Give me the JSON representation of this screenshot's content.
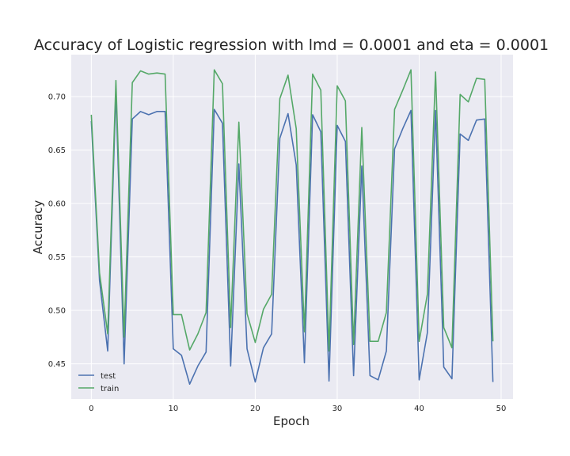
{
  "chart_data": {
    "type": "line",
    "title": "Accuracy of Logistic regression with lmd = 0.0001 and eta = 0.0001",
    "xlabel": "Epoch",
    "ylabel": "Accuracy",
    "xlim": [
      -2.45,
      51.45
    ],
    "ylim": [
      0.4171,
      0.7392
    ],
    "xticks": [
      0,
      10,
      20,
      30,
      40,
      50
    ],
    "yticks": [
      0.45,
      0.5,
      0.55,
      0.6,
      0.65,
      0.7
    ],
    "xtick_labels": [
      "0",
      "10",
      "20",
      "30",
      "40",
      "50"
    ],
    "ytick_labels": [
      "0.45",
      "0.50",
      "0.55",
      "0.60",
      "0.65",
      "0.70"
    ],
    "grid": true,
    "legend_position": "lower-left",
    "series": [
      {
        "name": "test",
        "color": "#4c72b0",
        "x": [
          0,
          1,
          2,
          3,
          4,
          5,
          6,
          7,
          8,
          9,
          10,
          11,
          12,
          13,
          14,
          15,
          16,
          17,
          18,
          19,
          20,
          21,
          22,
          23,
          24,
          25,
          26,
          27,
          28,
          29,
          30,
          31,
          32,
          33,
          34,
          35,
          36,
          37,
          38,
          39,
          40,
          41,
          42,
          43,
          44,
          45,
          46,
          47,
          48,
          49
        ],
        "values": [
          0.677,
          0.528,
          0.462,
          0.705,
          0.45,
          0.679,
          0.686,
          0.683,
          0.686,
          0.686,
          0.464,
          0.458,
          0.431,
          0.448,
          0.461,
          0.688,
          0.675,
          0.448,
          0.637,
          0.464,
          0.433,
          0.465,
          0.478,
          0.661,
          0.684,
          0.636,
          0.451,
          0.683,
          0.667,
          0.434,
          0.673,
          0.658,
          0.439,
          0.635,
          0.439,
          0.435,
          0.462,
          0.651,
          0.67,
          0.687,
          0.435,
          0.479,
          0.687,
          0.447,
          0.436,
          0.665,
          0.659,
          0.678,
          0.679,
          0.433
        ]
      },
      {
        "name": "train",
        "color": "#55a868",
        "x": [
          0,
          1,
          2,
          3,
          4,
          5,
          6,
          7,
          8,
          9,
          10,
          11,
          12,
          13,
          14,
          15,
          16,
          17,
          18,
          19,
          20,
          21,
          22,
          23,
          24,
          25,
          26,
          27,
          28,
          29,
          30,
          31,
          32,
          33,
          34,
          35,
          36,
          37,
          38,
          39,
          40,
          41,
          42,
          43,
          44,
          45,
          46,
          47,
          48,
          49
        ],
        "values": [
          0.683,
          0.535,
          0.478,
          0.715,
          0.475,
          0.713,
          0.724,
          0.721,
          0.722,
          0.721,
          0.496,
          0.496,
          0.463,
          0.478,
          0.498,
          0.725,
          0.712,
          0.484,
          0.676,
          0.497,
          0.47,
          0.501,
          0.515,
          0.698,
          0.72,
          0.67,
          0.48,
          0.721,
          0.706,
          0.462,
          0.71,
          0.696,
          0.468,
          0.671,
          0.471,
          0.471,
          0.498,
          0.688,
          0.706,
          0.725,
          0.471,
          0.515,
          0.723,
          0.484,
          0.465,
          0.702,
          0.695,
          0.717,
          0.716,
          0.471
        ]
      }
    ]
  }
}
